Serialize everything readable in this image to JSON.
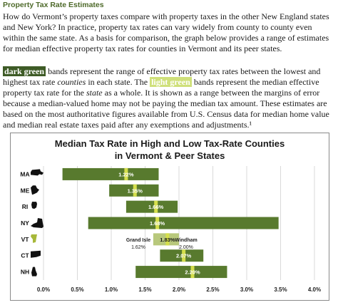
{
  "header": {
    "section_title": "Property Tax Rate Estimates"
  },
  "paragraph1": "How do Vermont’s property taxes compare with property taxes in the other New England states and New York? In practice, property tax rates can vary widely from county to county even within the same state. As a basis for comparison, the graph below provides a range of estimates for median effective property tax rates for counties in Vermont and its peer states.",
  "paragraph2": {
    "dark_term": "dark green",
    "part1": " bands represent the range of effective property tax rates between the lowest and highest tax rate ",
    "counties_word": "counties",
    "part2": " in each state. The ",
    "light_term": "light green",
    "part3": " bands represent the median effective property tax rate for the ",
    "state_word": "state",
    "part4": " as a whole. It is shown as a range between the margins of error because a median-valued home may not be paying the median tax amount. These estimates are based on the most authoritative figures available from U.S. Census data for median home value and median real estate taxes paid after any exemptions and adjustments.¹"
  },
  "chart_data": {
    "type": "bar",
    "title": "Median Tax Rate in High and Low Tax-Rate Counties",
    "subtitle": "in Vermont & Peer States",
    "xlim": [
      0,
      4
    ],
    "x_ticks": [
      "0.0%",
      "0.5%",
      "1.0%",
      "1.5%",
      "2.0%",
      "2.5%",
      "3.0%",
      "3.5%",
      "4.0%"
    ],
    "grid": true,
    "colors": {
      "range_band": "#587a2e",
      "vt_band": "#b8c87c",
      "median_band": "#d4de4c",
      "state_shape": "#111111",
      "vt_shape": "#a7b83a"
    },
    "states": [
      {
        "name": "MA",
        "low": 0.28,
        "high": 1.7,
        "median": 1.22,
        "median_label": "1.22%"
      },
      {
        "name": "ME",
        "low": 0.97,
        "high": 1.7,
        "median": 1.35,
        "median_label": "1.35%"
      },
      {
        "name": "RI",
        "low": 1.22,
        "high": 1.98,
        "median": 1.66,
        "median_label": "1.66%"
      },
      {
        "name": "NY",
        "low": 0.66,
        "high": 3.47,
        "median": 1.68,
        "median_label": "1.68%"
      },
      {
        "name": "VT",
        "low": 1.62,
        "high": 2.0,
        "median": 1.83,
        "median_label": "1.83%"
      },
      {
        "name": "CT",
        "low": 1.72,
        "high": 2.36,
        "median": 2.07,
        "median_label": "2.07%"
      },
      {
        "name": "NH",
        "low": 1.36,
        "high": 2.71,
        "median": 2.2,
        "median_label": "2.20%"
      }
    ],
    "annotations": {
      "low_county": "Grand Isle",
      "low_value": "1.62%",
      "high_county": "Windham",
      "high_value": "2.00%"
    }
  }
}
